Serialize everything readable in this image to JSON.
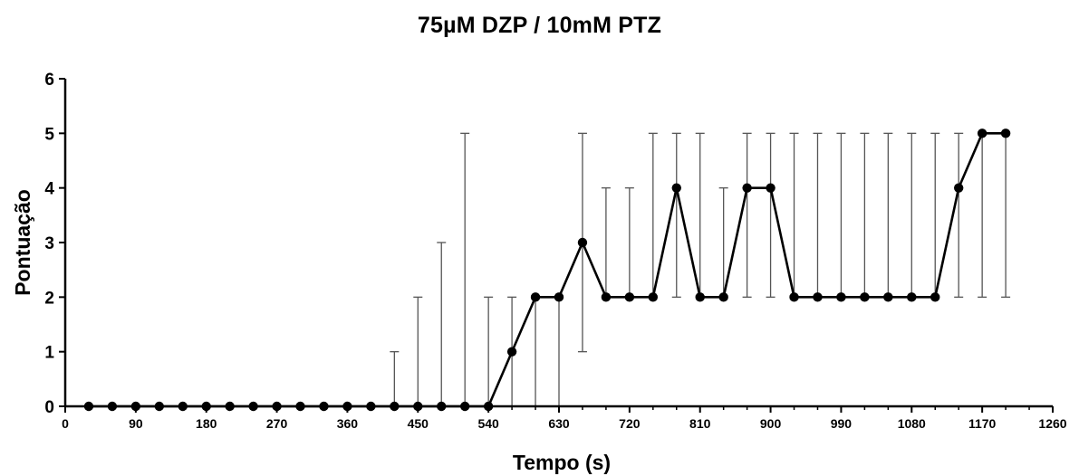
{
  "chart_data": {
    "type": "line",
    "title": "75µM DZP / 10mM PTZ",
    "xlabel": "Tempo (s)",
    "ylabel": "Pontuação",
    "xlim": [
      0,
      1260
    ],
    "ylim": [
      0,
      6
    ],
    "x_ticks": [
      "0",
      "90",
      "180",
      "270",
      "360",
      "450",
      "540",
      "630",
      "720",
      "810",
      "900",
      "990",
      "1080",
      "1170",
      "1260"
    ],
    "y_ticks": [
      "0",
      "1",
      "2",
      "3",
      "4",
      "5",
      "6"
    ],
    "grid": false,
    "legend": "none",
    "series": [
      {
        "color": "#000000",
        "x": [
          30,
          60,
          90,
          120,
          150,
          180,
          210,
          240,
          270,
          300,
          330,
          360,
          390,
          420,
          450,
          480,
          510,
          540,
          570,
          600,
          630,
          660,
          690,
          720,
          750,
          780,
          810,
          840,
          870,
          900,
          930,
          960,
          990,
          1020,
          1050,
          1080,
          1110,
          1140,
          1170,
          1200
        ],
        "y": [
          0,
          0,
          0,
          0,
          0,
          0,
          0,
          0,
          0,
          0,
          0,
          0,
          0,
          0,
          0,
          0,
          0,
          0,
          1,
          2,
          2,
          3,
          2,
          2,
          2,
          4,
          2,
          2,
          4,
          4,
          2,
          2,
          2,
          2,
          2,
          2,
          2,
          4,
          5,
          5
        ],
        "error_low": [
          0,
          0,
          0,
          0,
          0,
          0,
          0,
          0,
          0,
          0,
          0,
          0,
          0,
          0,
          0,
          0,
          0,
          0,
          0,
          0,
          0,
          1,
          2,
          2,
          2,
          2,
          2,
          2,
          2,
          2,
          2,
          2,
          2,
          2,
          2,
          2,
          2,
          2,
          2,
          2
        ],
        "error_high": [
          0,
          0,
          0,
          0,
          0,
          0,
          0,
          0,
          0,
          0,
          0,
          0,
          0,
          1,
          2,
          3,
          5,
          2,
          2,
          2,
          2,
          5,
          4,
          4,
          5,
          5,
          5,
          4,
          5,
          5,
          5,
          5,
          5,
          5,
          5,
          5,
          5,
          5,
          5,
          5
        ]
      }
    ]
  }
}
